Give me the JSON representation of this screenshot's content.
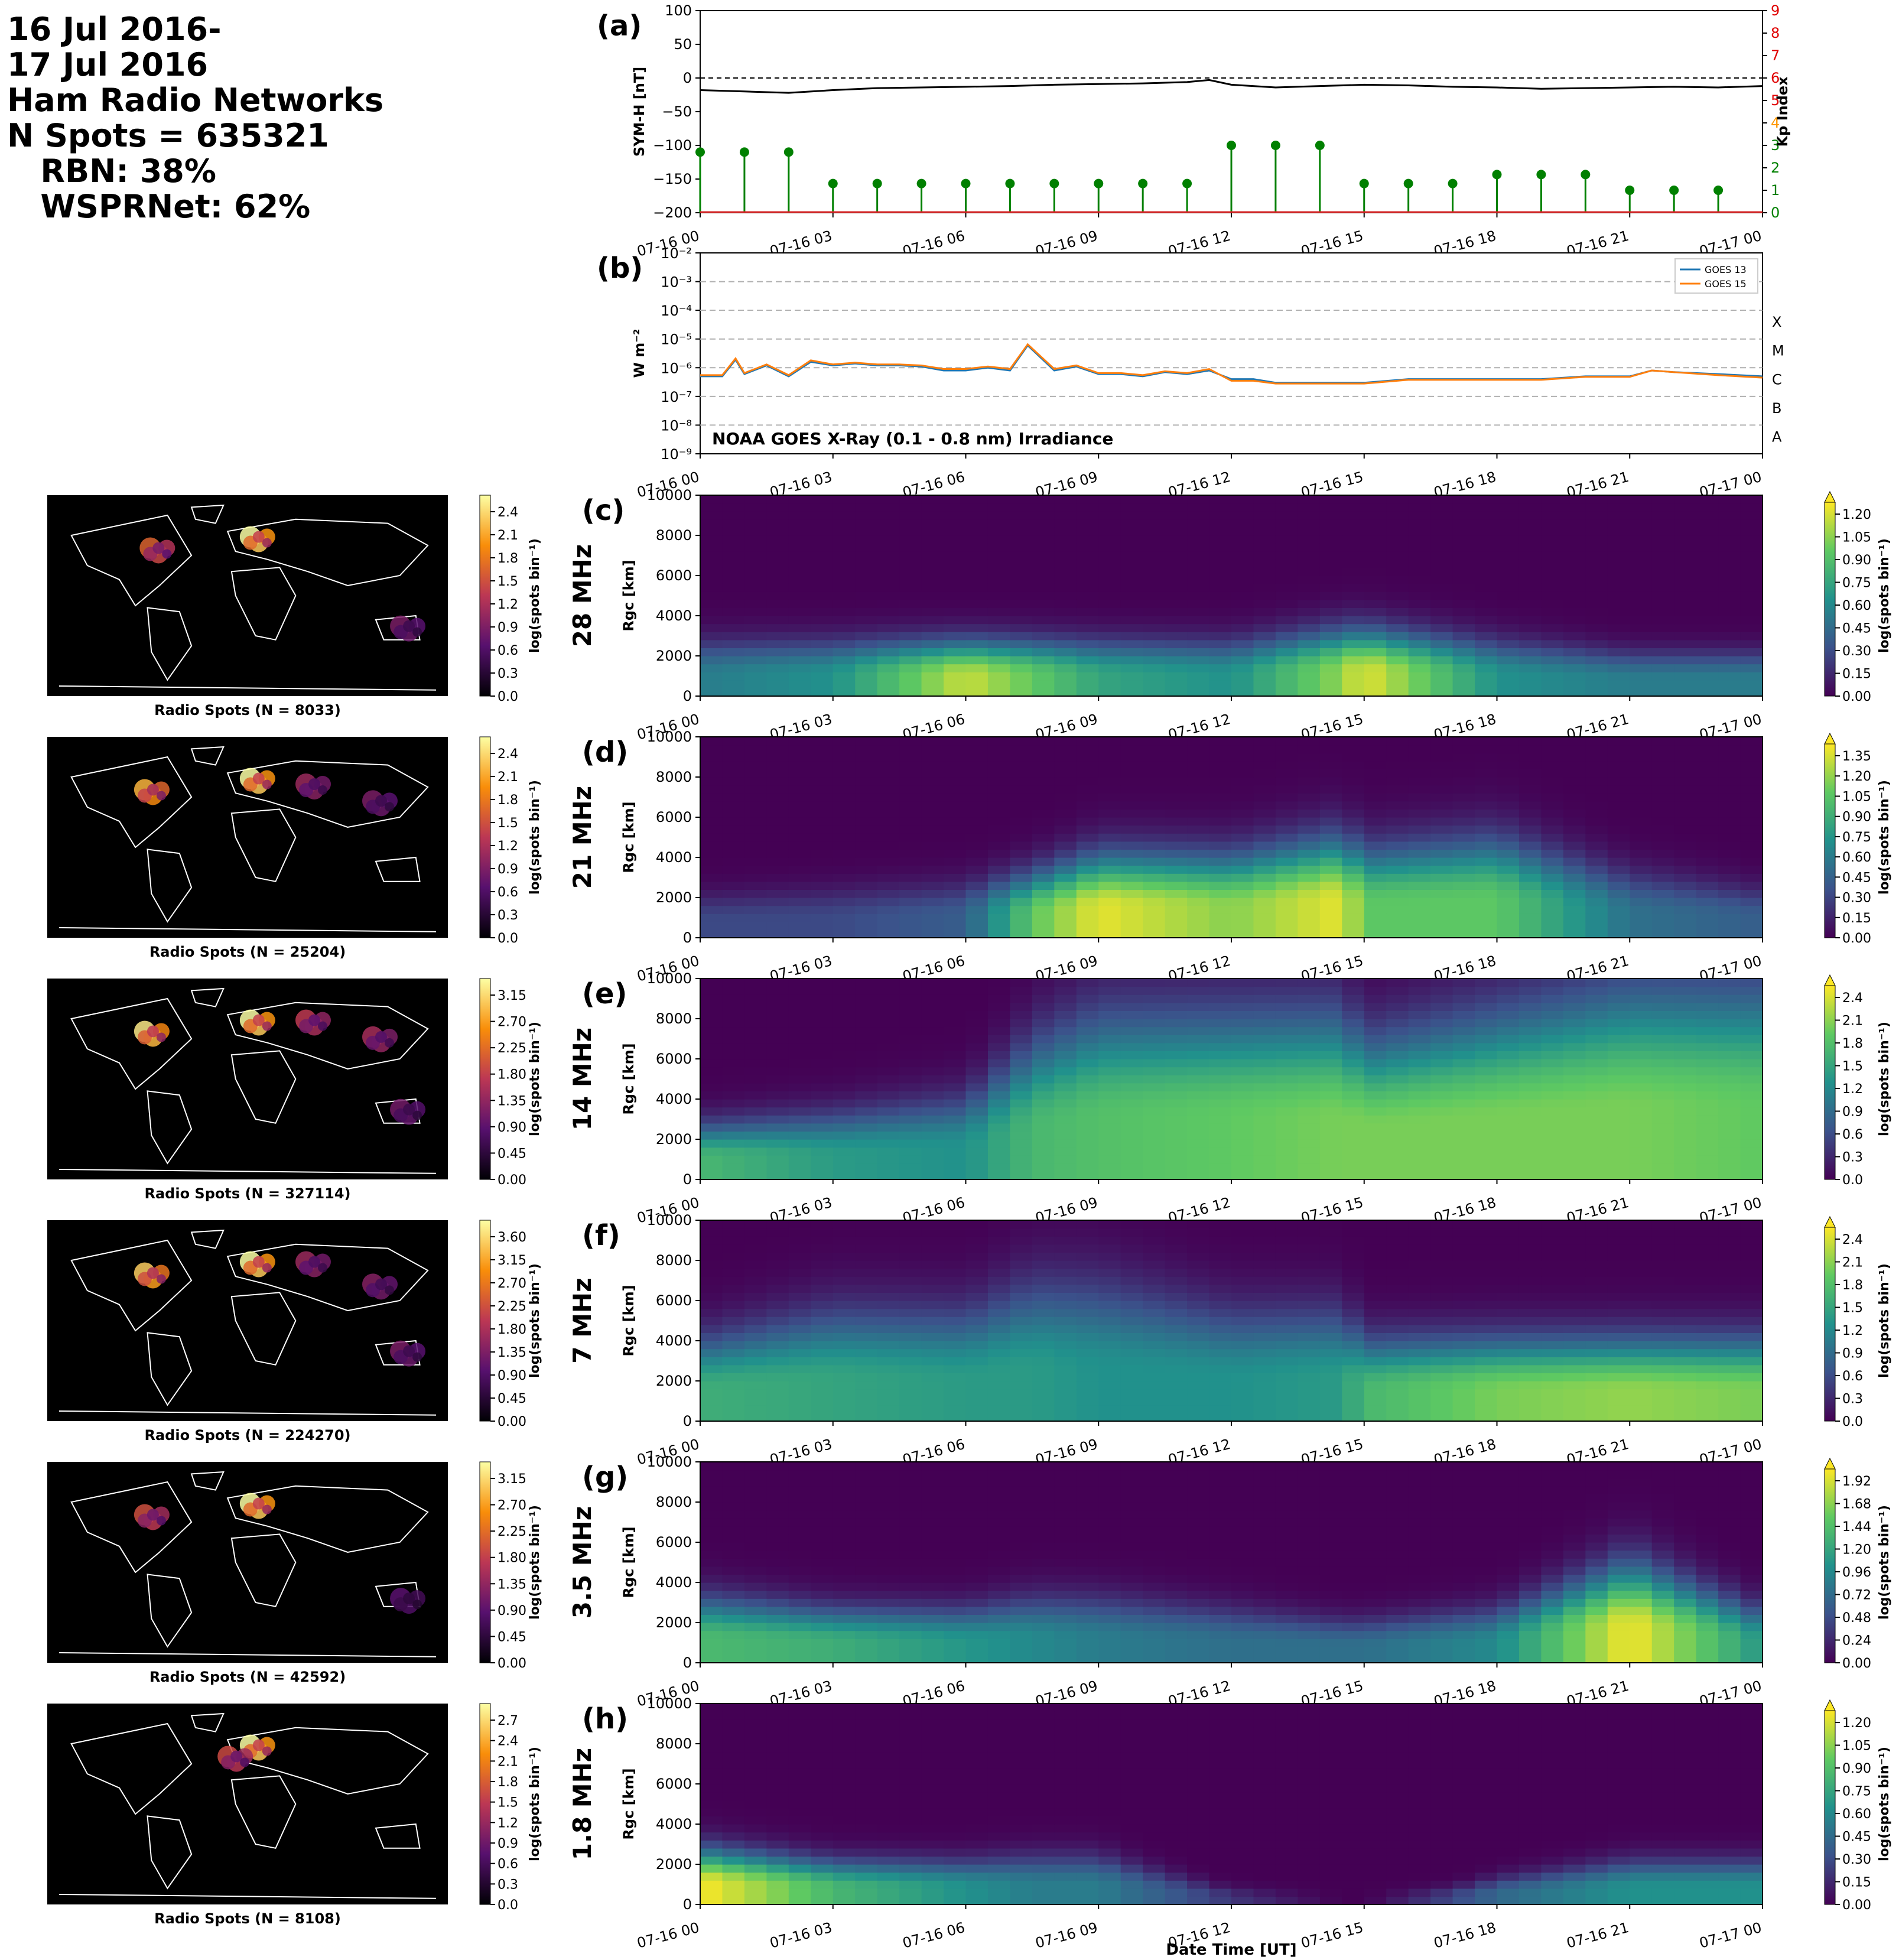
{
  "header": {
    "date_start": "16 Jul 2016-",
    "date_end": "17 Jul 2016",
    "title": "Ham Radio Networks",
    "n_spots": "N Spots = 635321",
    "rbn": "   RBN: 38%",
    "wsprnet": "   WSPRNet: 62%"
  },
  "colors": {
    "symh_line": "#000000",
    "kp_stem": "#008000",
    "kp_axis_red": "#e00000",
    "kp_axis_orange": "#ff9900",
    "kp_axis_green": "#008000",
    "goes13": "#1f77b4",
    "goes15": "#ff7f0e",
    "grid_dashed": "#b0b0b0"
  },
  "time_ticks": [
    "07-16 00",
    "07-16 03",
    "07-16 06",
    "07-16 09",
    "07-16 12",
    "07-16 15",
    "07-16 18",
    "07-16 21",
    "07-17 00"
  ],
  "chart_data": [
    {
      "panel": "(a)",
      "type": "line",
      "ylabel": "SYM-H [nT]",
      "ylim": [
        -200,
        100
      ],
      "yticks": [
        "100",
        "50",
        "0",
        "−50",
        "−100",
        "−150",
        "−200"
      ],
      "y2label": "Kp Index",
      "y2lim": [
        0,
        9
      ],
      "y2ticks": [
        "0",
        "1",
        "2",
        "3",
        "4",
        "5",
        "6",
        "7",
        "8",
        "9"
      ],
      "series": [
        {
          "x_hours": [
            0,
            1,
            2,
            3,
            4,
            5,
            6,
            7,
            8,
            9,
            10,
            11,
            11.5,
            12,
            13,
            14,
            15,
            16,
            17,
            18,
            19,
            20,
            21,
            22,
            23,
            24
          ],
          "values": [
            -18,
            -20,
            -22,
            -18,
            -15,
            -14,
            -13,
            -12,
            -10,
            -9,
            -8,
            -6,
            -3,
            -10,
            -14,
            -12,
            -10,
            -11,
            -13,
            -14,
            -16,
            -15,
            -14,
            -13,
            -14,
            -12
          ]
        }
      ],
      "kp": {
        "x_hours": [
          0,
          1,
          2,
          3,
          4,
          5,
          6,
          7,
          8,
          9,
          10,
          11,
          12,
          13,
          14,
          15,
          16,
          17,
          18,
          19,
          20,
          21,
          22,
          23
        ],
        "values": [
          2.7,
          2.7,
          2.7,
          1.3,
          1.3,
          1.3,
          1.3,
          1.3,
          1.3,
          1.3,
          1.3,
          1.3,
          3.0,
          3.0,
          3.0,
          1.3,
          1.3,
          1.3,
          1.7,
          1.7,
          1.7,
          1.0,
          1.0,
          1.0
        ]
      }
    },
    {
      "panel": "(b)",
      "type": "line",
      "ylabel": "W m⁻²",
      "yscale": "log",
      "ylim": [
        1e-09,
        0.01
      ],
      "yticks": [
        "10⁻²",
        "10⁻³",
        "10⁻⁴",
        "10⁻⁵",
        "10⁻⁶",
        "10⁻⁷",
        "10⁻⁸",
        "10⁻⁹"
      ],
      "class_labels": [
        "X",
        "M",
        "C",
        "B",
        "A"
      ],
      "annotation": "NOAA GOES X-Ray (0.1 - 0.8 nm) Irradiance",
      "legend_position": "top-right",
      "series": [
        {
          "name": "GOES 13",
          "x_hours": [
            0,
            0.5,
            0.8,
            1,
            1.5,
            2,
            2.5,
            3,
            3.5,
            4,
            4.5,
            5,
            5.5,
            6,
            6.5,
            7,
            7.4,
            8,
            8.5,
            9,
            9.5,
            10,
            10.5,
            11,
            11.5,
            12,
            12.5,
            13,
            13.5,
            14,
            15,
            16,
            17,
            18,
            19,
            20,
            21,
            21.5,
            22,
            23,
            24
          ],
          "values": [
            5e-07,
            5e-07,
            1.9e-06,
            6e-07,
            1.2e-06,
            5e-07,
            1.6e-06,
            1.2e-06,
            1.4e-06,
            1.2e-06,
            1.2e-06,
            1.1e-06,
            8e-07,
            8e-07,
            1e-06,
            8e-07,
            6e-06,
            8e-07,
            1.1e-06,
            6e-07,
            6e-07,
            5e-07,
            7e-07,
            6e-07,
            8e-07,
            4e-07,
            4e-07,
            3e-07,
            3e-07,
            3e-07,
            3e-07,
            4e-07,
            4e-07,
            4e-07,
            4e-07,
            5e-07,
            5e-07,
            8e-07,
            7e-07,
            6e-07,
            5e-07
          ]
        },
        {
          "name": "GOES 15",
          "x_hours": [
            0,
            0.5,
            0.8,
            1,
            1.5,
            2,
            2.5,
            3,
            3.5,
            4,
            4.5,
            5,
            5.5,
            6,
            6.5,
            7,
            7.4,
            8,
            8.5,
            9,
            9.5,
            10,
            10.5,
            11,
            11.5,
            12,
            12.5,
            13,
            13.5,
            14,
            15,
            16,
            17,
            18,
            19,
            20,
            21,
            21.5,
            22,
            23,
            24
          ],
          "values": [
            5.5e-07,
            5.5e-07,
            2.1e-06,
            6.5e-07,
            1.3e-06,
            5.5e-07,
            1.8e-06,
            1.3e-06,
            1.5e-06,
            1.3e-06,
            1.3e-06,
            1.2e-06,
            9e-07,
            9e-07,
            1.1e-06,
            9e-07,
            6.5e-06,
            9e-07,
            1.2e-06,
            6.5e-07,
            6.5e-07,
            5.5e-07,
            7.5e-07,
            6.5e-07,
            9e-07,
            3.5e-07,
            3.5e-07,
            2.8e-07,
            2.8e-07,
            2.8e-07,
            2.8e-07,
            3.8e-07,
            3.8e-07,
            3.8e-07,
            3.8e-07,
            4.8e-07,
            4.8e-07,
            8e-07,
            7e-07,
            5.5e-07,
            4.5e-07
          ]
        }
      ]
    },
    {
      "panel": "(c)",
      "band": "28 MHz",
      "type": "heatmap",
      "ylabel": "Rgc [km]",
      "ylim": [
        0,
        10000
      ],
      "map_caption": "Radio Spots (N = 8033)",
      "map_cbar_ticks": [
        "2.4",
        "2.1",
        "1.8",
        "1.5",
        "1.2",
        "0.9",
        "0.6",
        "0.3",
        "0.0"
      ],
      "cbar_ticks": [
        "1.20",
        "1.05",
        "0.90",
        "0.75",
        "0.60",
        "0.45",
        "0.30",
        "0.15",
        "0.00"
      ],
      "cbar_label": "log(spots bin⁻¹)",
      "colormap": "viridis",
      "map_colormap": "inferno",
      "x_hours": [
        0,
        3,
        6,
        7.5,
        9,
        12,
        14.5,
        15,
        18,
        21,
        24
      ],
      "range_profile_km": [
        1000,
        1000,
        1000,
        1000,
        1000,
        1000,
        1200,
        1200,
        1000,
        800,
        800
      ],
      "intensity": [
        0.5,
        0.6,
        1.1,
        0.9,
        0.7,
        0.6,
        1.0,
        1.15,
        0.6,
        0.5,
        0.5
      ],
      "map_hotspots": [
        {
          "lon": -80,
          "lat": 40,
          "v": 1.5
        },
        {
          "lon": 10,
          "lat": 50,
          "v": 2.4
        },
        {
          "lon": 145,
          "lat": -30,
          "v": 0.8
        }
      ]
    },
    {
      "panel": "(d)",
      "band": "21 MHz",
      "type": "heatmap",
      "ylabel": "Rgc [km]",
      "ylim": [
        0,
        10000
      ],
      "map_caption": "Radio Spots (N = 25204)",
      "map_cbar_ticks": [
        "2.4",
        "2.1",
        "1.8",
        "1.5",
        "1.2",
        "0.9",
        "0.6",
        "0.3",
        "0.0"
      ],
      "cbar_ticks": [
        "1.35",
        "1.20",
        "1.05",
        "0.90",
        "0.75",
        "0.60",
        "0.45",
        "0.30",
        "0.15",
        "0.00"
      ],
      "cbar_label": "log(spots bin⁻¹)",
      "colormap": "viridis",
      "map_colormap": "inferno",
      "x_hours": [
        0,
        3,
        6,
        7.5,
        9,
        12,
        14.5,
        15,
        18,
        21,
        24
      ],
      "range_profile_km": [
        800,
        900,
        1000,
        1200,
        1500,
        1500,
        1800,
        1600,
        1800,
        1200,
        900
      ],
      "intensity": [
        0.3,
        0.3,
        0.4,
        1.0,
        1.3,
        1.1,
        1.3,
        1.0,
        1.0,
        0.5,
        0.4
      ],
      "map_hotspots": [
        {
          "lon": -85,
          "lat": 40,
          "v": 2.0
        },
        {
          "lon": 10,
          "lat": 50,
          "v": 2.4
        },
        {
          "lon": 60,
          "lat": 45,
          "v": 1.0
        },
        {
          "lon": 120,
          "lat": 30,
          "v": 0.8
        }
      ]
    },
    {
      "panel": "(e)",
      "band": "14 MHz",
      "type": "heatmap",
      "ylabel": "Rgc [km]",
      "ylim": [
        0,
        10000
      ],
      "map_caption": "Radio Spots (N = 327114)",
      "map_cbar_ticks": [
        "3.15",
        "2.70",
        "2.25",
        "1.80",
        "1.35",
        "0.90",
        "0.45",
        "0.00"
      ],
      "cbar_ticks": [
        "2.4",
        "2.1",
        "1.8",
        "1.5",
        "1.2",
        "0.9",
        "0.6",
        "0.3",
        "0.0"
      ],
      "cbar_label": "log(spots bin⁻¹)",
      "colormap": "viridis",
      "map_colormap": "inferno",
      "x_hours": [
        0,
        3,
        6,
        7.5,
        9,
        12,
        14.5,
        15,
        18,
        21,
        24
      ],
      "range_profile_km": [
        1000,
        1200,
        1500,
        2500,
        3000,
        3000,
        3000,
        2500,
        3000,
        3500,
        3500
      ],
      "intensity": [
        1.6,
        1.3,
        1.2,
        1.6,
        1.7,
        1.8,
        1.9,
        1.9,
        1.9,
        1.9,
        1.8
      ],
      "map_hotspots": [
        {
          "lon": -85,
          "lat": 40,
          "v": 3.0
        },
        {
          "lon": 10,
          "lat": 50,
          "v": 3.15
        },
        {
          "lon": 60,
          "lat": 50,
          "v": 1.6
        },
        {
          "lon": 120,
          "lat": 35,
          "v": 1.4
        },
        {
          "lon": 145,
          "lat": -30,
          "v": 1.0
        }
      ]
    },
    {
      "panel": "(f)",
      "band": "7 MHz",
      "type": "heatmap",
      "ylabel": "Rgc [km]",
      "ylim": [
        0,
        10000
      ],
      "map_caption": "Radio Spots (N = 224270)",
      "map_cbar_ticks": [
        "3.60",
        "3.15",
        "2.70",
        "2.25",
        "1.80",
        "1.35",
        "0.90",
        "0.45",
        "0.00"
      ],
      "cbar_ticks": [
        "2.4",
        "2.1",
        "1.8",
        "1.5",
        "1.2",
        "0.9",
        "0.6",
        "0.3",
        "0.0"
      ],
      "cbar_label": "log(spots bin⁻¹)",
      "colormap": "viridis",
      "map_colormap": "inferno",
      "x_hours": [
        0,
        3,
        6,
        7.5,
        9,
        12,
        14.5,
        15,
        18,
        21,
        24
      ],
      "range_profile_km": [
        1500,
        2000,
        2000,
        2500,
        2500,
        2000,
        2000,
        1500,
        1500,
        1500,
        1500
      ],
      "intensity": [
        1.5,
        1.4,
        1.3,
        1.3,
        1.2,
        1.2,
        1.3,
        1.6,
        1.9,
        2.0,
        1.9
      ],
      "map_hotspots": [
        {
          "lon": -85,
          "lat": 40,
          "v": 3.2
        },
        {
          "lon": 10,
          "lat": 50,
          "v": 3.6
        },
        {
          "lon": 60,
          "lat": 50,
          "v": 1.5
        },
        {
          "lon": 120,
          "lat": 30,
          "v": 1.3
        },
        {
          "lon": 145,
          "lat": -30,
          "v": 1.2
        }
      ]
    },
    {
      "panel": "(g)",
      "band": "3.5 MHz",
      "type": "heatmap",
      "ylabel": "Rgc [km]",
      "ylim": [
        0,
        10000
      ],
      "map_caption": "Radio Spots (N = 42592)",
      "map_cbar_ticks": [
        "3.15",
        "2.70",
        "2.25",
        "1.80",
        "1.35",
        "0.90",
        "0.45",
        "0.00"
      ],
      "cbar_ticks": [
        "1.92",
        "1.68",
        "1.44",
        "1.20",
        "0.96",
        "0.72",
        "0.48",
        "0.24",
        "0.00"
      ],
      "cbar_label": "log(spots bin⁻¹)",
      "colormap": "viridis",
      "map_colormap": "inferno",
      "x_hours": [
        0,
        3,
        6,
        7.5,
        9,
        12,
        14.5,
        15,
        18,
        21,
        24
      ],
      "range_profile_km": [
        1200,
        1000,
        1000,
        1200,
        1200,
        1000,
        800,
        800,
        1000,
        1800,
        1000
      ],
      "intensity": [
        1.3,
        1.2,
        1.0,
        0.9,
        0.8,
        0.7,
        0.7,
        0.7,
        0.9,
        1.9,
        1.0
      ],
      "map_hotspots": [
        {
          "lon": -85,
          "lat": 40,
          "v": 1.8
        },
        {
          "lon": 10,
          "lat": 50,
          "v": 3.15
        },
        {
          "lon": 145,
          "lat": -35,
          "v": 0.8
        }
      ]
    },
    {
      "panel": "(h)",
      "band": "1.8 MHz",
      "type": "heatmap",
      "ylabel": "Rgc [km]",
      "ylim": [
        0,
        10000
      ],
      "xlabel": "Date Time [UT]",
      "map_caption": "Radio Spots (N = 8108)",
      "map_cbar_ticks": [
        "2.7",
        "2.4",
        "2.1",
        "1.8",
        "1.5",
        "1.2",
        "0.9",
        "0.6",
        "0.3",
        "0.0"
      ],
      "cbar_ticks": [
        "1.20",
        "1.05",
        "0.90",
        "0.75",
        "0.60",
        "0.45",
        "0.30",
        "0.15",
        "0.00"
      ],
      "cbar_label": "log(spots bin⁻¹)",
      "colormap": "viridis",
      "map_colormap": "inferno",
      "x_hours": [
        0,
        3,
        6,
        7.5,
        9,
        12,
        14.5,
        15,
        18,
        21,
        24
      ],
      "range_profile_km": [
        1000,
        800,
        800,
        900,
        900,
        300,
        0,
        0,
        500,
        800,
        800
      ],
      "intensity": [
        1.2,
        0.8,
        0.6,
        0.5,
        0.5,
        0.2,
        0.0,
        0.0,
        0.4,
        0.6,
        0.6
      ],
      "map_hotspots": [
        {
          "lon": 10,
          "lat": 50,
          "v": 2.7
        },
        {
          "lon": -10,
          "lat": 40,
          "v": 1.5
        }
      ]
    }
  ]
}
